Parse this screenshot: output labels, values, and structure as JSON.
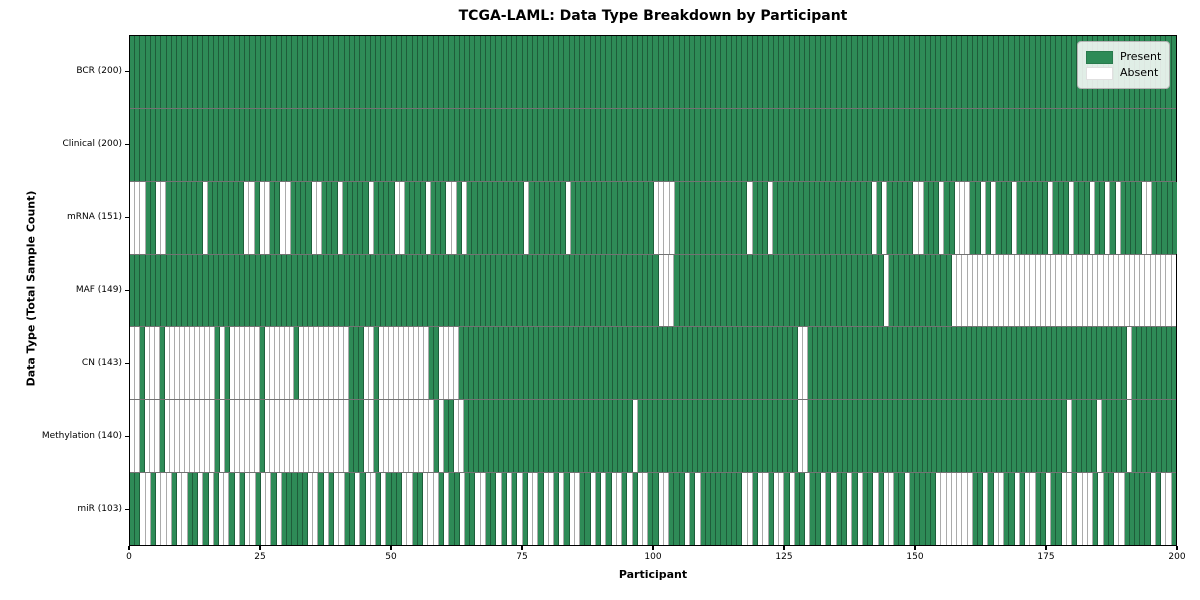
{
  "title": "TCGA-LAML: Data Type Breakdown by Participant",
  "x_axis": {
    "label": "Participant",
    "ticks": [
      0,
      25,
      50,
      75,
      100,
      125,
      150,
      175,
      200
    ]
  },
  "y_axis": {
    "label": "Data Type (Total Sample Count)"
  },
  "legend": {
    "items": [
      {
        "label": "Present",
        "color": "#2e8b57"
      },
      {
        "label": "Absent",
        "color": "#ffffff"
      }
    ]
  },
  "chart_data": {
    "type": "heatmap",
    "title": "TCGA-LAML: Data Type Breakdown by Participant",
    "xlabel": "Participant",
    "ylabel": "Data Type (Total Sample Count)",
    "x_range": [
      0,
      200
    ],
    "n_participants": 200,
    "legend_position": "upper right",
    "colors": {
      "present": "#2e8b57",
      "absent": "#ffffff",
      "cell_edge": "rgba(0,0,0,0.33)"
    },
    "value_encoding": {
      "1": "Present",
      "0": "Absent"
    },
    "rows": [
      {
        "name": "BCR",
        "label": "BCR (200)",
        "total": 200,
        "pattern": "11111111111111111111111111111111111111111111111111111111111111111111111111111111111111111111111111111111111111111111111111111111111111111111111111111111111111111111111111111111111111111111111111111111"
      },
      {
        "name": "Clinical",
        "label": "Clinical (200)",
        "total": 200,
        "pattern": "11111111111111111111111111111111111111111111111111111111111111111111111111111111111111111111111111111111111111111111111111111111111111111111111111111111111111111111111111111111111111111111111111111111"
      },
      {
        "name": "mRNA",
        "label": "mRNA (151)",
        "total": 151,
        "pattern": "00011001111111011111110010011001111001110111110111100111101110010111111111110111111101111111111111111000011111111111111011101111111111111111111010111110011101100011010111011111101110111011010111100111 11"
      },
      {
        "name": "MAF",
        "label": "MAF (149)",
        "total": 149,
        "pattern": "11111111111111111111111111111111111111111111111111111111111111111111111111111111111111111111111111111000111111111111111111111111111111111111111101111111111110000000000000000000000000000000000000000000"
      },
      {
        "name": "CN",
        "label": "CN (143)",
        "total": 143,
        "pattern": "00100010000000000101000000100000010000000000111001000000000011000011111111111111111111111111111111111111111111111111111111111111111111001111111111111111111111111111111111111111111111111111111111111111 0111111111"
      },
      {
        "name": "Methylation",
        "label": "Methylation (140)",
        "total": 140,
        "pattern": "00100010000000000101000000100000000000000000111001000000000001011001111111111111111111111111111111111011111111111111111111111111111111001111111111111111111111111111111111111111111111111111011111011111 0111111111"
      },
      {
        "name": "miR",
        "label": "miR (103)",
        "total": 103,
        "pattern": "11001000100110101001010010010111110010100110100101110011000101101100110101010010010100110101001010011001110101111111100100100101101101011010110100110111110000000110100110100110110010001011001111101001"
      }
    ]
  }
}
